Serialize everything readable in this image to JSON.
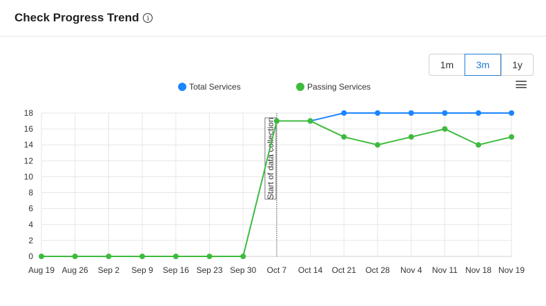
{
  "header": {
    "title": "Check Progress Trend",
    "info_icon": "info-icon"
  },
  "range_selector": {
    "options": [
      {
        "label": "1m",
        "active": false
      },
      {
        "label": "3m",
        "active": true
      },
      {
        "label": "1y",
        "active": false
      }
    ]
  },
  "menu_icon": "hamburger-menu-icon",
  "chart_data": {
    "type": "line",
    "categories": [
      "Aug 19",
      "Aug 26",
      "Sep 2",
      "Sep 9",
      "Sep 16",
      "Sep 23",
      "Sep 30",
      "Oct 7",
      "Oct 14",
      "Oct 21",
      "Oct 28",
      "Nov 4",
      "Nov 11",
      "Nov 18",
      "Nov 19"
    ],
    "series": [
      {
        "name": "Total Services",
        "color": "#1a85ff",
        "points": [
          [
            "Oct 7",
            17
          ],
          [
            "Oct 14",
            17
          ],
          [
            "Oct 21",
            18
          ],
          [
            "Oct 28",
            18
          ],
          [
            "Nov 4",
            18
          ],
          [
            "Nov 11",
            18
          ],
          [
            "Nov 18",
            18
          ],
          [
            "Nov 19",
            18
          ]
        ]
      },
      {
        "name": "Passing Services",
        "color": "#3dbb3d",
        "points": [
          [
            "Aug 19",
            0
          ],
          [
            "Aug 26",
            0
          ],
          [
            "Sep 2",
            0
          ],
          [
            "Sep 9",
            0
          ],
          [
            "Sep 16",
            0
          ],
          [
            "Sep 23",
            0
          ],
          [
            "Sep 30",
            0
          ],
          [
            "Oct 7",
            17
          ],
          [
            "Oct 14",
            17
          ],
          [
            "Oct 21",
            15
          ],
          [
            "Oct 28",
            14
          ],
          [
            "Nov 4",
            15
          ],
          [
            "Nov 11",
            16
          ],
          [
            "Nov 18",
            14
          ],
          [
            "Nov 19",
            15
          ]
        ]
      }
    ],
    "yticks": [
      0,
      2,
      4,
      6,
      8,
      10,
      12,
      14,
      16,
      18
    ],
    "ylim": [
      0,
      18
    ],
    "grid": true,
    "legend_position": "top",
    "annotation": {
      "at": "Oct 7",
      "label": "Start of data collection",
      "style": "dotted"
    }
  }
}
